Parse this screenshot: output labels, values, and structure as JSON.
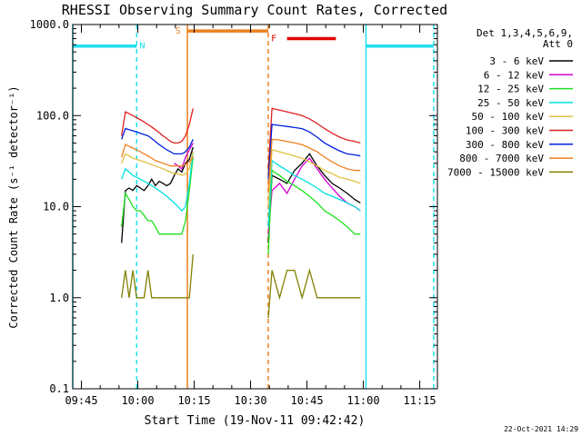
{
  "chart_data": {
    "type": "line",
    "title": "RHESSI Observing Summary Count Rates, Corrected",
    "xlabel": "Start Time (19-Nov-11 09:42:42)",
    "ylabel": "Corrected Count Rate (s⁻¹ detector⁻¹)",
    "x_unit": "minutes after 09:42:42",
    "xlim": [
      0,
      97
    ],
    "ylim": [
      0.1,
      1000
    ],
    "y_scale": "log",
    "x_tick_labels": [
      {
        "x": 2.3,
        "label": "09:45"
      },
      {
        "x": 17.3,
        "label": "10:00"
      },
      {
        "x": 32.3,
        "label": "10:15"
      },
      {
        "x": 47.3,
        "label": "10:30"
      },
      {
        "x": 62.3,
        "label": "10:45"
      },
      {
        "x": 77.3,
        "label": "11:00"
      },
      {
        "x": 92.3,
        "label": "11:15"
      }
    ],
    "y_tick_labels": [
      {
        "y": 0.1,
        "label": "0.1"
      },
      {
        "y": 1,
        "label": "1.0"
      },
      {
        "y": 10,
        "label": "10.0"
      },
      {
        "y": 100,
        "label": "100.0"
      },
      {
        "y": 1000,
        "label": "1000.0"
      }
    ],
    "legend": {
      "header": "Det 1,3,4,5,6,9,",
      "subheader": "Att 0",
      "placement": "top-right outside"
    },
    "series": [
      {
        "name": "3 - 6 keV",
        "color": "#000000",
        "segments": [
          {
            "x": [
              13,
              14,
              15,
              16,
              17,
              18,
              19,
              20,
              21,
              22,
              23,
              24,
              25,
              26,
              27,
              28,
              29,
              30,
              31,
              32
            ],
            "y": [
              4,
              15,
              16,
              15,
              17,
              16,
              15,
              17,
              20,
              17,
              19,
              18,
              17,
              18,
              22,
              26,
              24,
              30,
              33,
              45
            ]
          },
          {
            "x": [
              52,
              53,
              55,
              57,
              59,
              61,
              63,
              65,
              67,
              69,
              71,
              73,
              75,
              76.5
            ],
            "y": [
              4,
              22,
              20,
              18,
              25,
              30,
              38,
              28,
              22,
              18,
              16,
              14,
              12,
              11
            ]
          }
        ]
      },
      {
        "name": "6 - 12 keV",
        "color": "#d400d4",
        "segments": [
          {
            "x": [
              27,
              28,
              29,
              30,
              31,
              32
            ],
            "y": [
              30,
              28,
              26,
              35,
              42,
              50
            ]
          },
          {
            "x": [
              52,
              53,
              55,
              57,
              59,
              61,
              63,
              65,
              67,
              69,
              71,
              73,
              75,
              76.5
            ],
            "y": [
              5,
              15,
              18,
              14,
              20,
              28,
              34,
              26,
              20,
              16,
              13,
              11,
              10,
              9
            ]
          }
        ]
      },
      {
        "name": "12 - 25 keV",
        "color": "#20e020",
        "segments": [
          {
            "x": [
              13,
              14,
              15,
              16,
              17,
              18,
              19,
              20,
              21,
              22,
              23,
              24,
              25,
              26,
              27,
              28,
              29,
              30,
              31,
              32
            ],
            "y": [
              6,
              14,
              12,
              10,
              9,
              9,
              8,
              7,
              7,
              6,
              5,
              5,
              5,
              5,
              5,
              5,
              5,
              7,
              15,
              35
            ]
          },
          {
            "x": [
              52,
              53,
              55,
              57,
              59,
              61,
              63,
              65,
              67,
              69,
              71,
              73,
              75,
              76.5
            ],
            "y": [
              3,
              25,
              22,
              19,
              17,
              15,
              13,
              11,
              9,
              8,
              7,
              6,
              5,
              5
            ]
          }
        ]
      },
      {
        "name": "25 - 50 keV",
        "color": "#00e0e0",
        "segments": [
          {
            "x": [
              13,
              14,
              15,
              16,
              17,
              18,
              19,
              20,
              21,
              22,
              23,
              24,
              25,
              26,
              27,
              28,
              29,
              30,
              31,
              32
            ],
            "y": [
              20,
              26,
              24,
              22,
              21,
              20,
              19,
              18,
              17,
              16,
              15,
              14,
              13,
              12,
              11,
              10,
              9,
              10,
              18,
              40
            ]
          },
          {
            "x": [
              52,
              53,
              55,
              57,
              59,
              61,
              63,
              65,
              67,
              69,
              71,
              73,
              75,
              76.5
            ],
            "y": [
              6,
              32,
              28,
              25,
              22,
              20,
              18,
              16,
              14,
              13,
              12,
              11,
              10,
              9
            ]
          }
        ]
      },
      {
        "name": "50 - 100 keV",
        "color": "#e0c040",
        "segments": [
          {
            "x": [
              13,
              14,
              15,
              16,
              17,
              18,
              19,
              20,
              21,
              22,
              23,
              24,
              25,
              26,
              27,
              28,
              29,
              30,
              31,
              32
            ],
            "y": [
              30,
              38,
              36,
              34,
              33,
              32,
              31,
              30,
              29,
              28,
              27,
              26,
              25,
              24,
              23,
              23,
              22,
              23,
              26,
              40
            ]
          },
          {
            "x": [
              52,
              53,
              55,
              57,
              59,
              61,
              63,
              65,
              67,
              69,
              71,
              73,
              75,
              76.5
            ],
            "y": [
              10,
              42,
              40,
              38,
              36,
              34,
              31,
              28,
              25,
              23,
              21,
              20,
              19,
              18
            ]
          }
        ]
      },
      {
        "name": "100 - 300 keV",
        "color": "#e02020",
        "segments": [
          {
            "x": [
              13,
              14,
              15,
              16,
              17,
              18,
              19,
              20,
              21,
              22,
              23,
              24,
              25,
              26,
              27,
              28,
              29,
              30,
              31,
              32
            ],
            "y": [
              60,
              110,
              105,
              100,
              95,
              90,
              85,
              80,
              75,
              70,
              65,
              60,
              56,
              52,
              50,
              50,
              52,
              60,
              80,
              120
            ]
          },
          {
            "x": [
              52,
              53,
              55,
              57,
              59,
              61,
              63,
              65,
              67,
              69,
              71,
              73,
              75,
              76.5
            ],
            "y": [
              25,
              120,
              115,
              110,
              105,
              100,
              92,
              82,
              72,
              64,
              58,
              54,
              52,
              50
            ]
          }
        ]
      },
      {
        "name": "300 - 800 keV",
        "color": "#0020e0",
        "segments": [
          {
            "x": [
              13,
              14,
              15,
              16,
              17,
              18,
              19,
              20,
              21,
              22,
              23,
              24,
              25,
              26,
              27,
              28,
              29,
              30,
              31,
              32
            ],
            "y": [
              55,
              72,
              70,
              68,
              66,
              64,
              62,
              60,
              56,
              52,
              48,
              45,
              42,
              40,
              38,
              38,
              38,
              40,
              45,
              55
            ]
          },
          {
            "x": [
              52,
              53,
              55,
              57,
              59,
              61,
              63,
              65,
              67,
              69,
              71,
              73,
              75,
              76.5
            ],
            "y": [
              20,
              80,
              78,
              76,
              74,
              72,
              66,
              58,
              50,
              45,
              41,
              38,
              37,
              36
            ]
          }
        ]
      },
      {
        "name": "800 - 7000 keV",
        "color": "#f08020",
        "segments": [
          {
            "x": [
              13,
              14,
              15,
              16,
              17,
              18,
              19,
              20,
              21,
              22,
              23,
              24,
              25,
              26,
              27,
              28,
              29,
              30,
              31,
              32
            ],
            "y": [
              35,
              48,
              46,
              44,
              42,
              40,
              38,
              36,
              34,
              32,
              31,
              30,
              29,
              28,
              28,
              28,
              28,
              29,
              31,
              35
            ]
          },
          {
            "x": [
              52,
              53,
              55,
              57,
              59,
              61,
              63,
              65,
              67,
              69,
              71,
              73,
              75,
              76.5
            ],
            "y": [
              15,
              55,
              54,
              52,
              50,
              48,
              44,
              40,
              35,
              31,
              28,
              26,
              25,
              25
            ]
          }
        ]
      },
      {
        "name": "7000 - 15000 keV",
        "color": "#808000",
        "segments": [
          {
            "x": [
              13,
              14,
              15,
              16,
              17,
              18,
              19,
              20,
              21,
              22,
              23,
              24,
              25,
              26,
              27,
              28,
              29,
              30,
              31,
              32
            ],
            "y": [
              1,
              2,
              1,
              2,
              1,
              1,
              1,
              2,
              1,
              1,
              1,
              1,
              1,
              1,
              1,
              1,
              1,
              1,
              1,
              3
            ]
          },
          {
            "x": [
              52,
              53,
              55,
              57,
              59,
              61,
              63,
              65,
              67,
              69,
              71,
              73,
              75,
              76.5
            ],
            "y": [
              0.6,
              2,
              1,
              2,
              2,
              1,
              2,
              1,
              1,
              1,
              1,
              1,
              1,
              1
            ]
          }
        ]
      }
    ],
    "flag_bars": [
      {
        "label": "",
        "color": "#20e0f0",
        "x_start": 0,
        "x_end": 17,
        "y": 580
      },
      {
        "label": "",
        "color": "#20e0f0",
        "x_start": 78,
        "x_end": 96,
        "y": 580
      },
      {
        "label": "S",
        "color": "#f08020",
        "x_start": 30.5,
        "x_end": 52,
        "y": 850
      },
      {
        "label": "F",
        "color": "#e00000",
        "x_start": 57,
        "x_end": 70,
        "y": 700
      }
    ],
    "flag_letters": [
      {
        "text": "N",
        "color": "#20e0f0",
        "x": 18.5,
        "y": 580
      },
      {
        "text": "S",
        "color": "#f08020",
        "x": 28,
        "y": 850
      },
      {
        "text": "F",
        "color": "#e00000",
        "x": 53.5,
        "y": 700
      }
    ],
    "vertical_lines": [
      {
        "x": 0,
        "color": "#20e0f0",
        "style": "solid"
      },
      {
        "x": 17,
        "color": "#20e0f0",
        "style": "dashed"
      },
      {
        "x": 30.5,
        "color": "#f08020",
        "style": "solid"
      },
      {
        "x": 52,
        "color": "#f08020",
        "style": "dashed"
      },
      {
        "x": 78,
        "color": "#20e0f0",
        "style": "solid"
      },
      {
        "x": 96,
        "color": "#20e0f0",
        "style": "dashed"
      }
    ],
    "timestamp": "22-Oct-2021 14:29"
  }
}
